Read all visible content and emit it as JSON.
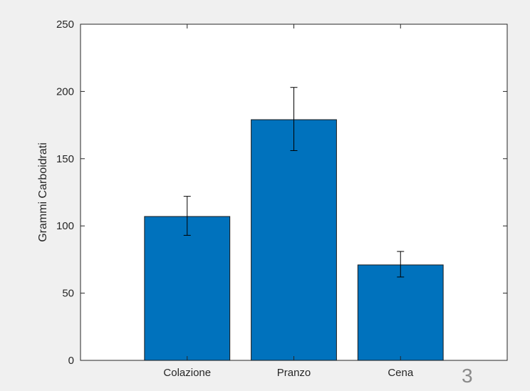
{
  "chart_data": {
    "type": "bar",
    "categories": [
      "Colazione",
      "Pranzo",
      "Cena"
    ],
    "values": [
      107,
      179,
      71
    ],
    "error_low": [
      93,
      156,
      62
    ],
    "error_high": [
      122,
      203,
      81
    ],
    "ylabel": "Grammi Carboidrati",
    "xlabel": "",
    "ylim": [
      0,
      250
    ],
    "yticks": [
      0,
      50,
      100,
      150,
      200,
      250
    ],
    "xlim": [
      0,
      4
    ],
    "grid": false,
    "colors": {
      "bar": "#0072BD",
      "background": "#f0f0f0",
      "axes": "#ffffff"
    }
  },
  "page_number": "3"
}
